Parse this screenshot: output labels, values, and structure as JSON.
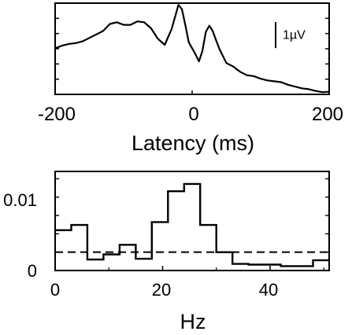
{
  "chart_data": [
    {
      "type": "line",
      "xlabel": "Latency (ms)",
      "ylabel": "",
      "xlim": [
        -200,
        200
      ],
      "ylim": [
        0,
        10.5
      ],
      "x_ticks": [
        -200,
        0,
        200
      ],
      "x_tick_labels": [
        "-200",
        "0",
        "200"
      ],
      "scale_bar": {
        "label": "1µV",
        "value": 3.0
      },
      "grid": false,
      "series": [
        {
          "x": [
            -200,
            -190,
            -180,
            -170,
            -160,
            -150,
            -140,
            -130,
            -120,
            -110,
            -100,
            -90,
            -80,
            -70,
            -60,
            -50,
            -40,
            -30,
            -20,
            -15,
            -10,
            -5,
            0,
            5,
            10,
            15,
            20,
            25,
            30,
            35,
            40,
            50,
            60,
            70,
            80,
            90,
            100,
            110,
            120,
            130,
            140,
            150,
            160,
            170,
            180,
            190,
            200
          ],
          "y": [
            5.3,
            5.6,
            5.8,
            5.9,
            6.1,
            6.5,
            6.9,
            7.3,
            8.1,
            8.3,
            8.0,
            8.0,
            8.4,
            8.3,
            7.6,
            6.4,
            5.7,
            7.5,
            10.3,
            9.8,
            8.0,
            6.0,
            5.3,
            4.6,
            3.8,
            5.0,
            7.2,
            7.9,
            7.3,
            6.2,
            5.2,
            3.6,
            3.2,
            2.6,
            2.2,
            2.1,
            1.8,
            1.6,
            1.5,
            1.4,
            1.1,
            0.9,
            0.7,
            0.6,
            0.4,
            0.25,
            0.3
          ]
        }
      ]
    },
    {
      "type": "histogram",
      "xlabel": "Hz",
      "ylabel": "",
      "xlim": [
        0,
        51
      ],
      "ylim": [
        0,
        0.0135
      ],
      "x_ticks": [
        0,
        20,
        40
      ],
      "x_tick_labels": [
        "0",
        "20",
        "40"
      ],
      "y_ticks": [
        0,
        0.01
      ],
      "y_tick_labels": [
        "0",
        "0.01"
      ],
      "bin_width": 3,
      "bin_edges": [
        0,
        3,
        6,
        9,
        12,
        15,
        18,
        21,
        24,
        27,
        30,
        33,
        36,
        39,
        42,
        45,
        48,
        51
      ],
      "values": [
        0.0055,
        0.0062,
        0.0015,
        0.0022,
        0.0035,
        0.0016,
        0.0066,
        0.0108,
        0.0118,
        0.0062,
        0.0025,
        0.0009,
        0.0008,
        0.0008,
        0.0006,
        0.0006,
        0.0014
      ],
      "threshold": 0.0025,
      "grid": false
    }
  ]
}
